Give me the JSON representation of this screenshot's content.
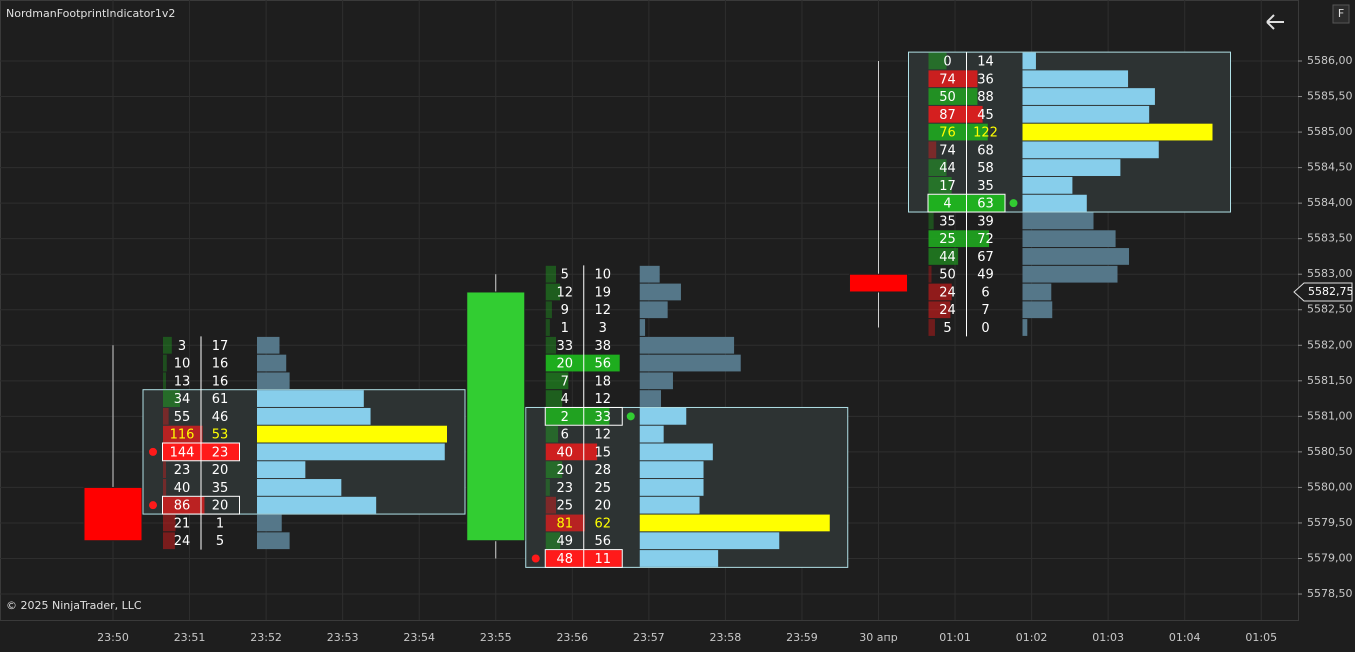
{
  "chart_data": {
    "type": "footprint",
    "title": "NordmanFootprintIndicator1v2",
    "copyright": "© 2025 NinjaTrader, LLC",
    "button": "F",
    "categories": [
      "23:50",
      "23:51",
      "23:52",
      "23:53",
      "23:54",
      "23:55",
      "23:56",
      "23:57",
      "23:58",
      "23:59",
      "30 апр",
      "01:01",
      "01:02",
      "01:03",
      "01:04",
      "01:05"
    ],
    "ylim": [
      5578.1345,
      5586.8583
    ],
    "yticks": [
      {
        "value": 5586.0,
        "label": "5586,00"
      },
      {
        "value": 5585.5,
        "label": "5585,50"
      },
      {
        "value": 5585.0,
        "label": "5585,00"
      },
      {
        "value": 5584.5,
        "label": "5584,50"
      },
      {
        "value": 5584.0,
        "label": "5584,00"
      },
      {
        "value": 5583.5,
        "label": "5583,50"
      },
      {
        "value": 5583.0,
        "label": "5583,00"
      },
      {
        "value": 5582.5,
        "label": "5582,50"
      },
      {
        "value": 5582.0,
        "label": "5582,00"
      },
      {
        "value": 5581.5,
        "label": "5581,50"
      },
      {
        "value": 5581.0,
        "label": "5581,00"
      },
      {
        "value": 5580.5,
        "label": "5580,50"
      },
      {
        "value": 5580.0,
        "label": "5580,00"
      },
      {
        "value": 5579.5,
        "label": "5579,50"
      },
      {
        "value": 5579.0,
        "label": "5579,00"
      },
      {
        "value": 5578.5,
        "label": "5578,50"
      }
    ],
    "last_price": {
      "value": 5582.75,
      "label": "5582,75"
    },
    "grid": true,
    "up_color": "#32cd32",
    "down_color": "#ff0000",
    "buy_color": "#1fb01f",
    "sell_color": "#ff1a1a",
    "volume_color": "#87ceeb",
    "volume_outside_color": "#557789",
    "poc_color": "#ffff00",
    "bars": [
      {
        "open": 5580.0,
        "high": 5582.0,
        "low": 5579.25,
        "close": 5579.25,
        "prices": [
          5582.0,
          5581.75,
          5581.5,
          5581.25,
          5581.0,
          5580.75,
          5580.5,
          5580.25,
          5580.0,
          5579.75,
          5579.5,
          5579.25
        ],
        "bids": [
          3,
          10,
          13,
          34,
          55,
          116,
          144,
          23,
          40,
          86,
          21,
          24
        ],
        "asks": [
          17,
          16,
          16,
          61,
          46,
          53,
          23,
          20,
          35,
          20,
          1,
          5
        ],
        "value_area": [
          5581.25,
          5579.75
        ],
        "signals": [
          {
            "price": 5580.5,
            "side": "sell"
          },
          {
            "price": 5579.75,
            "side": "sell"
          }
        ]
      },
      {
        "open": 5579.25,
        "high": 5583.0,
        "low": 5579.0,
        "close": 5582.75,
        "prices": [
          5583.0,
          5582.75,
          5582.5,
          5582.25,
          5582.0,
          5581.75,
          5581.5,
          5581.25,
          5581.0,
          5580.75,
          5580.5,
          5580.25,
          5580.0,
          5579.75,
          5579.5,
          5579.25,
          5579.0
        ],
        "bids": [
          5,
          12,
          9,
          1,
          33,
          20,
          7,
          4,
          2,
          6,
          40,
          20,
          23,
          25,
          81,
          49,
          48
        ],
        "asks": [
          10,
          19,
          12,
          3,
          38,
          56,
          18,
          12,
          33,
          12,
          15,
          28,
          25,
          20,
          62,
          56,
          11
        ],
        "value_area": [
          5581.0,
          5579.0
        ],
        "signals": [
          {
            "price": 5581.0,
            "side": "buy"
          },
          {
            "price": 5579.0,
            "side": "sell"
          }
        ]
      },
      {
        "open": 5583.0,
        "high": 5586.0,
        "low": 5582.25,
        "close": 5582.75,
        "prices": [
          5586.0,
          5585.75,
          5585.5,
          5585.25,
          5585.0,
          5584.75,
          5584.5,
          5584.25,
          5584.0,
          5583.75,
          5583.5,
          5583.25,
          5583.0,
          5582.75,
          5582.5,
          5582.25
        ],
        "bids": [
          0,
          74,
          50,
          87,
          76,
          74,
          44,
          17,
          4,
          35,
          25,
          44,
          50,
          24,
          24,
          5
        ],
        "asks": [
          14,
          36,
          88,
          45,
          122,
          68,
          58,
          35,
          63,
          39,
          72,
          67,
          49,
          6,
          7,
          0
        ],
        "value_area": [
          5586.0,
          5584.0
        ],
        "signals": [
          {
            "price": 5584.0,
            "side": "buy"
          }
        ]
      }
    ]
  }
}
